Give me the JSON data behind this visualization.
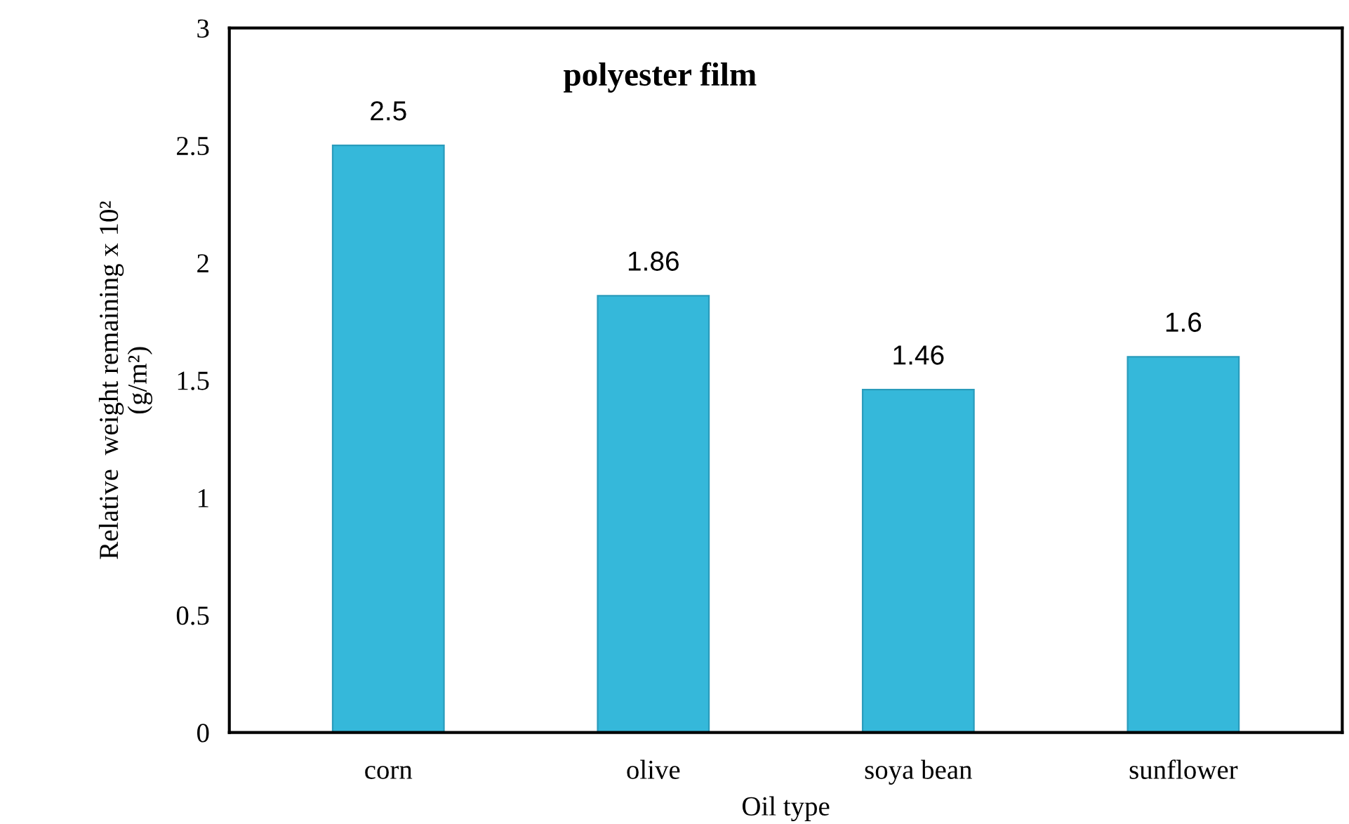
{
  "chart_data": {
    "type": "bar",
    "title": "polyester film",
    "xlabel": "Oil type",
    "ylabel": "Relative  weight remaining x 10²\n(g/m²)",
    "categories": [
      "corn",
      "olive",
      "soya bean",
      "sunflower"
    ],
    "values": [
      2.5,
      1.86,
      1.46,
      1.6
    ],
    "color": "#35b8da",
    "ylim": [
      0,
      3
    ],
    "yticks": [
      0,
      0.5,
      1,
      1.5,
      2,
      2.5,
      3
    ],
    "data_labels": true,
    "grid": false
  }
}
